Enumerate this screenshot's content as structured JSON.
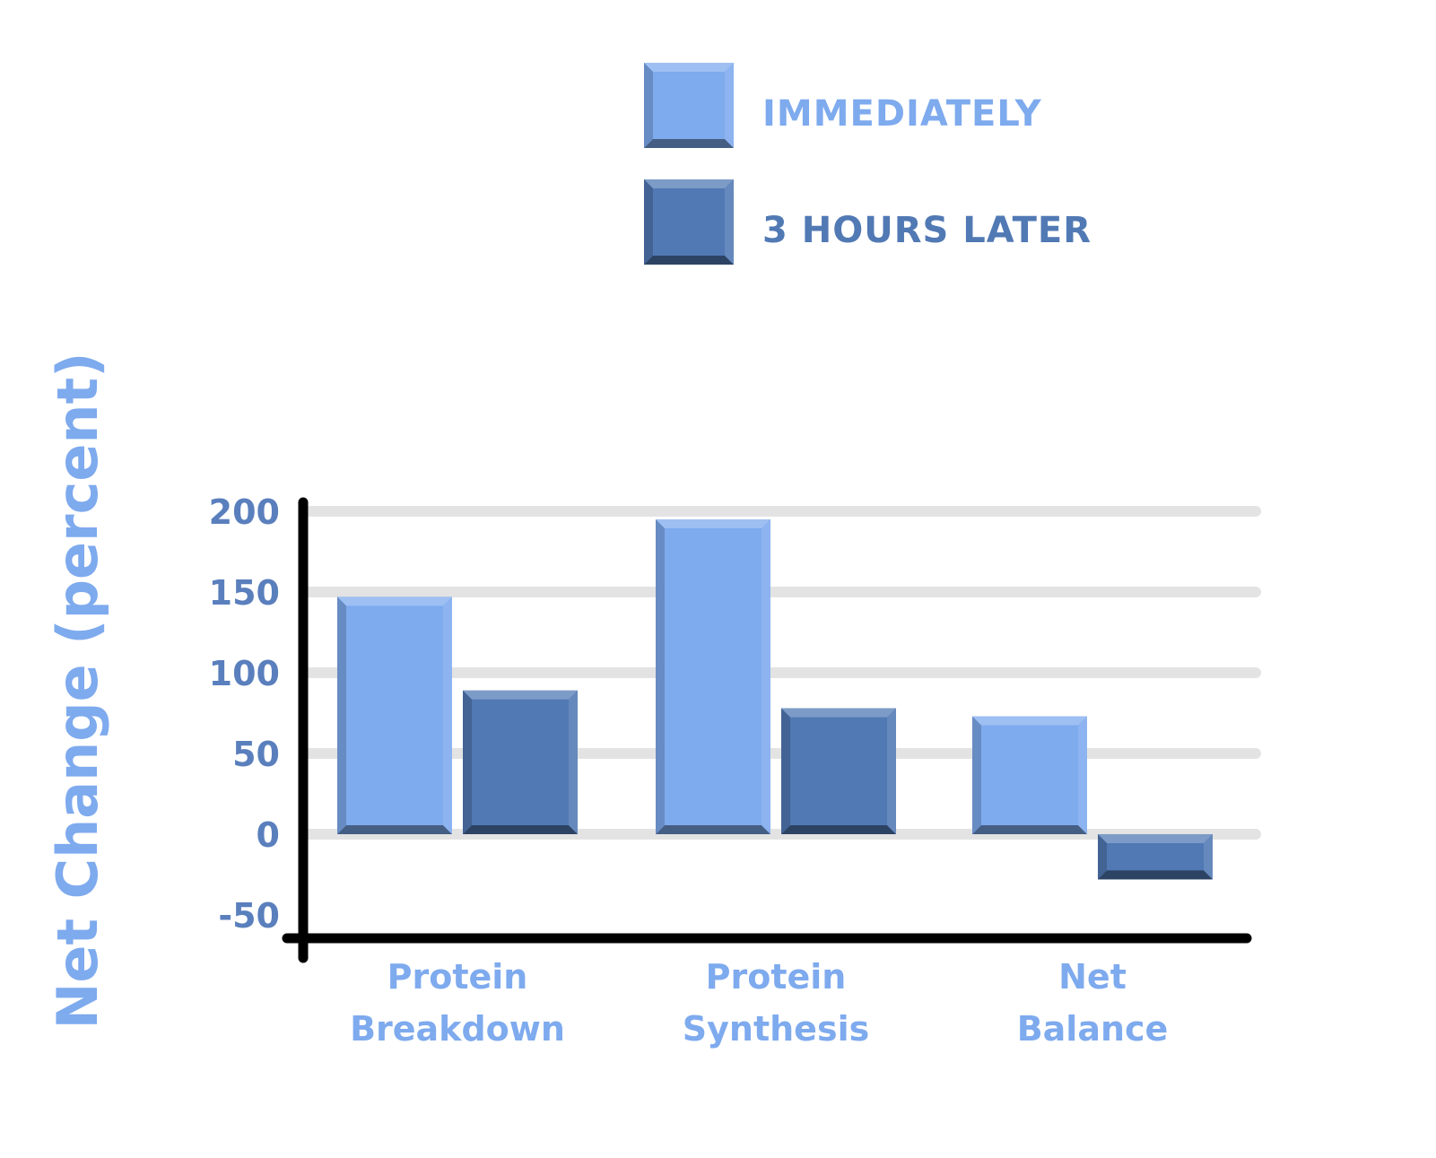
{
  "chart_data": {
    "type": "bar",
    "title": "",
    "xlabel": "",
    "ylabel": "Net Change (percent)",
    "ylim": [
      -50,
      200
    ],
    "yticks": [
      200,
      150,
      100,
      50,
      0,
      -50
    ],
    "grid": true,
    "legend_position": "top",
    "categories": [
      [
        "Protein",
        "Breakdown"
      ],
      [
        "Protein",
        "Synthesis"
      ],
      [
        "Net",
        "Balance"
      ]
    ],
    "series": [
      {
        "name": "IMMEDIATELY",
        "color": "#7eaaee",
        "values": [
          147,
          195,
          73
        ]
      },
      {
        "name": "3 HOURS LATER",
        "color": "#5179b4",
        "values": [
          89,
          78,
          -28
        ]
      }
    ]
  },
  "colors": {
    "axis": "#000000",
    "grid": "#e3e3e3",
    "tick_label": "#5a7fbd",
    "category_label": "#7eaaee",
    "ylabel": "#7eaaee"
  }
}
